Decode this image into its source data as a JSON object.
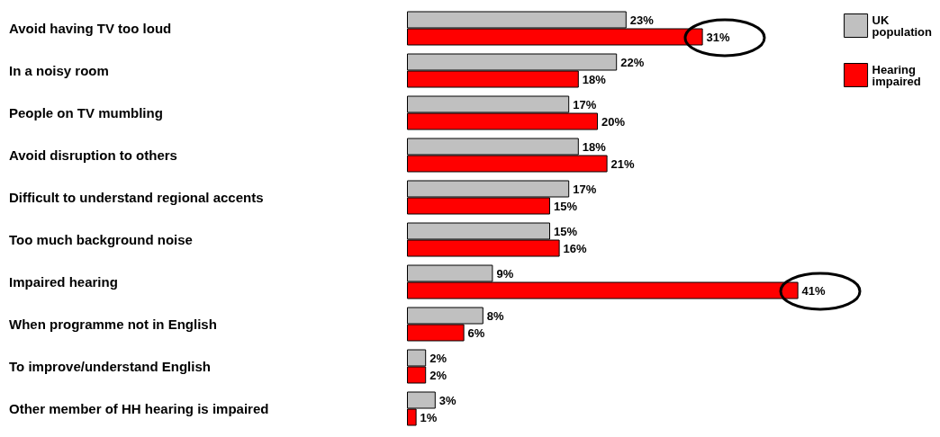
{
  "chart_data": {
    "type": "bar",
    "orientation": "horizontal",
    "legend": "top right",
    "categories": [
      "Avoid having TV too loud",
      "In a noisy room",
      "People on TV mumbling",
      "Avoid disruption to others",
      "Difficult to understand regional accents",
      "Too much background noise",
      "Impaired hearing",
      "When programme not in English",
      "To improve/understand English",
      "Other member of HH hearing is impaired"
    ],
    "series": [
      {
        "name": "UK population",
        "color": "#c0c0c0",
        "values": [
          23,
          22,
          17,
          18,
          17,
          15,
          9,
          8,
          2,
          3
        ],
        "value_labels": [
          "23%",
          "22%",
          "17%",
          "18%",
          "17%",
          "15%",
          "9%",
          "8%",
          "2%",
          "3%"
        ]
      },
      {
        "name": "Hearing impaired",
        "color": "#ff0000",
        "values": [
          31,
          18,
          20,
          21,
          15,
          16,
          41,
          6,
          2,
          1
        ],
        "value_labels": [
          "31%",
          "18%",
          "20%",
          "21%",
          "15%",
          "16%",
          "41%",
          "6%",
          "2%",
          "1%"
        ]
      }
    ]
  }
}
